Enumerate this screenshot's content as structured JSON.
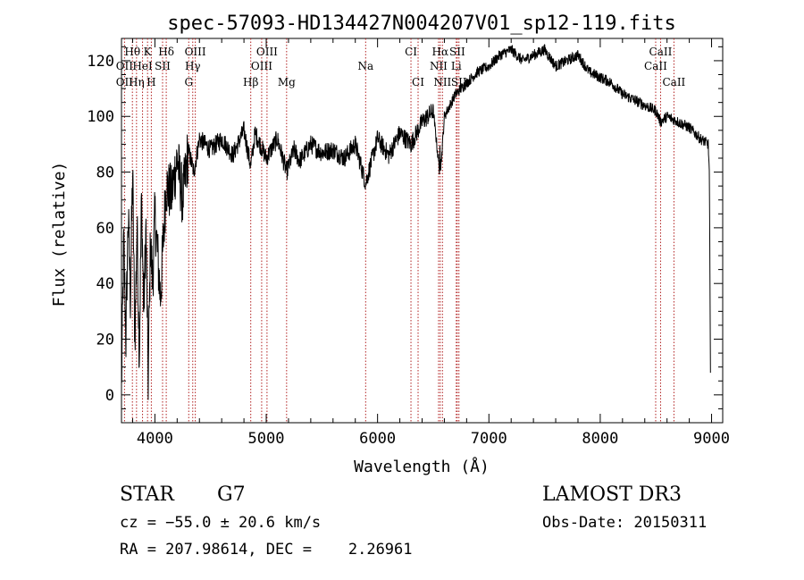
{
  "chart_data": {
    "type": "line",
    "title": "spec-57093-HD134427N004207V01_sp12-119.fits",
    "xlabel": "Wavelength (Å)",
    "ylabel": "Flux (relative)",
    "xlim": [
      3700,
      9100
    ],
    "ylim": [
      -10,
      128
    ],
    "xticks": [
      4000,
      5000,
      6000,
      7000,
      8000,
      9000
    ],
    "yticks": [
      0,
      20,
      40,
      60,
      80,
      100,
      120
    ],
    "grid": false,
    "series": [
      {
        "name": "flux",
        "x": [
          3700,
          3720,
          3740,
          3760,
          3780,
          3800,
          3820,
          3840,
          3860,
          3880,
          3900,
          3920,
          3940,
          3960,
          3980,
          4000,
          4050,
          4100,
          4150,
          4200,
          4250,
          4300,
          4350,
          4400,
          4500,
          4600,
          4700,
          4800,
          4861,
          4900,
          5000,
          5100,
          5183,
          5250,
          5300,
          5400,
          5500,
          5600,
          5700,
          5800,
          5893,
          6000,
          6100,
          6200,
          6300,
          6400,
          6500,
          6563,
          6600,
          6700,
          6800,
          6900,
          7000,
          7100,
          7200,
          7300,
          7400,
          7500,
          7600,
          7700,
          7800,
          7900,
          8000,
          8100,
          8200,
          8300,
          8400,
          8500,
          8542,
          8600,
          8700,
          8800,
          8900,
          8970,
          8980,
          8990
        ],
        "y": [
          2,
          55,
          20,
          65,
          35,
          80,
          20,
          60,
          15,
          70,
          30,
          60,
          5,
          55,
          40,
          65,
          35,
          75,
          72,
          85,
          70,
          88,
          80,
          92,
          88,
          92,
          86,
          95,
          82,
          94,
          85,
          92,
          80,
          88,
          84,
          90,
          87,
          88,
          85,
          90,
          76,
          92,
          86,
          94,
          90,
          98,
          102,
          78,
          100,
          108,
          112,
          116,
          118,
          122,
          124,
          120,
          122,
          124,
          118,
          120,
          122,
          116,
          114,
          112,
          108,
          106,
          104,
          102,
          98,
          100,
          98,
          96,
          92,
          90,
          80,
          6
        ]
      }
    ],
    "line_labels": [
      {
        "text": "Hθ",
        "x": 3798,
        "row": 1
      },
      {
        "text": "K",
        "x": 3934,
        "row": 1
      },
      {
        "text": "Hδ",
        "x": 4102,
        "row": 1
      },
      {
        "text": "OIII",
        "x": 4363,
        "row": 1
      },
      {
        "text": "OIII",
        "x": 5007,
        "row": 1
      },
      {
        "text": "CI",
        "x": 6300,
        "row": 1
      },
      {
        "text": "Hα",
        "x": 6563,
        "row": 1
      },
      {
        "text": "SII",
        "x": 6716,
        "row": 1
      },
      {
        "text": "CaII",
        "x": 8542,
        "row": 1
      },
      {
        "text": "OII",
        "x": 3727,
        "row": 2
      },
      {
        "text": "HeI",
        "x": 3889,
        "row": 2
      },
      {
        "text": "SII",
        "x": 4069,
        "row": 2
      },
      {
        "text": "Hγ",
        "x": 4340,
        "row": 2
      },
      {
        "text": "OIII",
        "x": 4959,
        "row": 2
      },
      {
        "text": "Na",
        "x": 5893,
        "row": 2
      },
      {
        "text": "NII",
        "x": 6548,
        "row": 2
      },
      {
        "text": "Li",
        "x": 6707,
        "row": 2
      },
      {
        "text": "CaII",
        "x": 8498,
        "row": 2
      },
      {
        "text": "OII",
        "x": 3727,
        "row": 3
      },
      {
        "text": "Hη",
        "x": 3835,
        "row": 3
      },
      {
        "text": "H",
        "x": 3968,
        "row": 3
      },
      {
        "text": "G",
        "x": 4304,
        "row": 3
      },
      {
        "text": "Hβ",
        "x": 4861,
        "row": 3
      },
      {
        "text": "Mg",
        "x": 5183,
        "row": 3
      },
      {
        "text": "CI",
        "x": 6364,
        "row": 3
      },
      {
        "text": "NII",
        "x": 6583,
        "row": 3
      },
      {
        "text": "SII",
        "x": 6731,
        "row": 3
      },
      {
        "text": "CaII",
        "x": 8662,
        "row": 3
      }
    ],
    "line_positions": [
      3727,
      3798,
      3835,
      3889,
      3934,
      3968,
      4069,
      4102,
      4304,
      4340,
      4363,
      4861,
      4959,
      5007,
      5183,
      5893,
      6300,
      6364,
      6548,
      6563,
      6583,
      6707,
      6716,
      6731,
      8498,
      8542,
      8662
    ]
  },
  "footer": {
    "object_type": "STAR",
    "subclass": "G7",
    "survey": "LAMOST DR3",
    "cz": "cz = −55.0 ± 20.6 km/s",
    "obs_date": "Obs-Date: 20150311",
    "coords": "RA = 207.98614, DEC =    2.26961"
  }
}
